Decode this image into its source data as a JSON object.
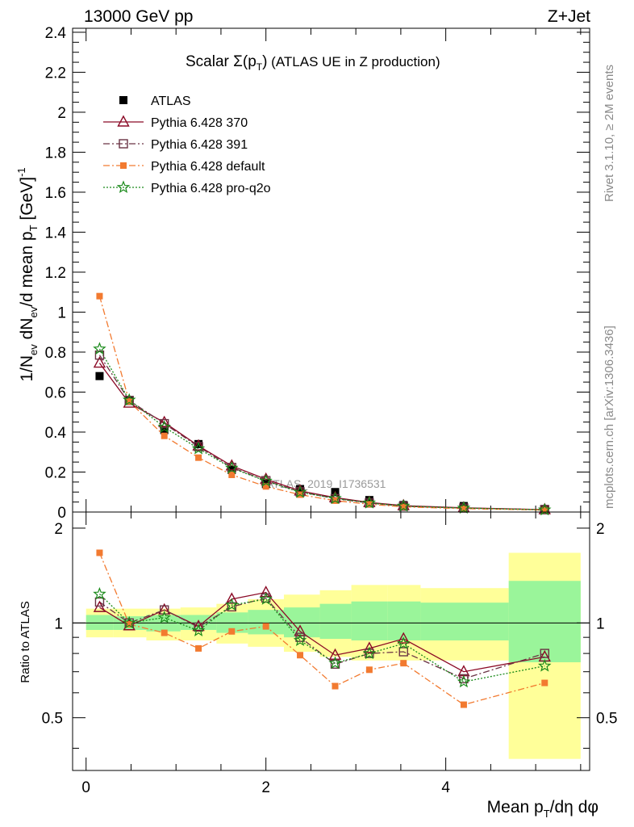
{
  "header": {
    "energy_label": "13000 GeV pp",
    "process_label": "Z+Jet"
  },
  "side_labels": {
    "rivet": "Rivet 3.1.10, ≥ 2M events",
    "mcplots": "mcplots.cern.ch [arXiv:1306.3436]"
  },
  "chart_data": [
    {
      "type": "scatter",
      "panel": "main",
      "title": "Scalar Σ(pT) (ATLAS UE in Z production)",
      "watermark": "ATLAS_2019_I1736531",
      "ylabel": "1/Nev dNev/d mean pT [GeV]^-1",
      "xlabel": "Mean pT/dη dφ",
      "xlim": [
        -0.15,
        5.6
      ],
      "ylim": [
        0,
        2.42
      ],
      "yticks": [
        0,
        0.2,
        0.4,
        0.6,
        0.8,
        1,
        1.2,
        1.4,
        1.6,
        1.8,
        2,
        2.2,
        2.4
      ],
      "legend_position": "top-left",
      "x": [
        0.15,
        0.48,
        0.87,
        1.25,
        1.62,
        2.0,
        2.38,
        2.77,
        3.15,
        3.53,
        4.2,
        5.1
      ],
      "series": [
        {
          "name": "ATLAS",
          "color": "#000000",
          "marker": "filled-square",
          "line": "none",
          "values": [
            0.68,
            0.56,
            0.41,
            0.34,
            0.21,
            0.14,
            0.115,
            0.1,
            0.06,
            0.035,
            0.03,
            0.015
          ]
        },
        {
          "name": "Pythia 6.428 370",
          "color": "#8b0a26",
          "marker": "open-triangle",
          "line": "solid",
          "values": [
            0.745,
            0.545,
            0.448,
            0.331,
            0.231,
            0.164,
            0.106,
            0.072,
            0.048,
            0.032,
            0.021,
            0.012
          ]
        },
        {
          "name": "Pythia 6.428 391",
          "color": "#6a3344",
          "marker": "open-square",
          "line": "dashdot",
          "values": [
            0.785,
            0.558,
            0.442,
            0.327,
            0.223,
            0.157,
            0.101,
            0.067,
            0.045,
            0.029,
            0.02,
            0.012
          ]
        },
        {
          "name": "Pythia 6.428 default",
          "color": "#f27a30",
          "marker": "filled-square-small",
          "line": "dashdot",
          "values": [
            1.08,
            0.553,
            0.381,
            0.272,
            0.186,
            0.128,
            0.087,
            0.057,
            0.039,
            0.026,
            0.017,
            0.01
          ]
        },
        {
          "name": "Pythia 6.428 pro-q2o",
          "color": "#1a8a1a",
          "marker": "star",
          "line": "dotted",
          "values": [
            0.816,
            0.56,
            0.425,
            0.317,
            0.22,
            0.155,
            0.099,
            0.068,
            0.046,
            0.03,
            0.02,
            0.011
          ]
        }
      ]
    },
    {
      "type": "scatter",
      "panel": "ratio",
      "ylabel": "Ratio to ATLAS",
      "xlabel": "Mean pT/dη dφ",
      "xlim": [
        -0.15,
        5.6
      ],
      "ylim": [
        0.34,
        2.25
      ],
      "yticks": [
        0.5,
        1,
        2
      ],
      "xticks": [
        0,
        2,
        4
      ],
      "reference_line": 1,
      "band_edges": [
        0.0,
        0.3,
        0.67,
        1.05,
        1.45,
        1.8,
        2.2,
        2.6,
        2.95,
        3.35,
        3.72,
        4.7,
        5.5
      ],
      "band_inner": [
        [
          0.95,
          1.06
        ],
        [
          0.95,
          1.05
        ],
        [
          0.94,
          1.06
        ],
        [
          0.95,
          1.06
        ],
        [
          0.93,
          1.08
        ],
        [
          0.92,
          1.1
        ],
        [
          0.9,
          1.12
        ],
        [
          0.89,
          1.15
        ],
        [
          0.88,
          1.17
        ],
        [
          0.88,
          1.17
        ],
        [
          0.88,
          1.16
        ],
        [
          0.75,
          1.36
        ]
      ],
      "band_outer": [
        [
          0.9,
          1.11
        ],
        [
          0.9,
          1.11
        ],
        [
          0.88,
          1.11
        ],
        [
          0.88,
          1.12
        ],
        [
          0.86,
          1.15
        ],
        [
          0.84,
          1.19
        ],
        [
          0.81,
          1.23
        ],
        [
          0.78,
          1.27
        ],
        [
          0.76,
          1.32
        ],
        [
          0.76,
          1.32
        ],
        [
          0.76,
          1.29
        ],
        [
          0.37,
          1.67
        ]
      ],
      "band_colors": {
        "inner": "#9af59a",
        "outer": "#ffff99"
      },
      "x": [
        0.15,
        0.48,
        0.87,
        1.25,
        1.62,
        2.0,
        2.38,
        2.77,
        3.15,
        3.53,
        4.2,
        5.1
      ],
      "series": [
        {
          "name": "Pythia 6.428 370",
          "color": "#8b0a26",
          "marker": "open-triangle",
          "line": "solid",
          "values": [
            1.12,
            0.98,
            1.1,
            0.975,
            1.19,
            1.25,
            0.94,
            0.79,
            0.83,
            0.89,
            0.7,
            0.78
          ]
        },
        {
          "name": "Pythia 6.428 391",
          "color": "#6a3344",
          "marker": "open-square",
          "line": "dashdot",
          "values": [
            1.165,
            1.0,
            1.1,
            0.97,
            1.125,
            1.2,
            0.9,
            0.74,
            0.8,
            0.81,
            0.665,
            0.8
          ]
        },
        {
          "name": "Pythia 6.428 default",
          "color": "#f27a30",
          "marker": "filled-square-small",
          "line": "dashdot",
          "values": [
            1.67,
            0.99,
            0.93,
            0.83,
            0.94,
            0.975,
            0.79,
            0.63,
            0.71,
            0.745,
            0.55,
            0.645
          ]
        },
        {
          "name": "Pythia 6.428 pro-q2o",
          "color": "#1a8a1a",
          "marker": "star",
          "line": "dotted",
          "values": [
            1.235,
            1.0,
            1.04,
            0.945,
            1.14,
            1.19,
            0.88,
            0.745,
            0.8,
            0.86,
            0.65,
            0.73
          ]
        }
      ]
    }
  ]
}
